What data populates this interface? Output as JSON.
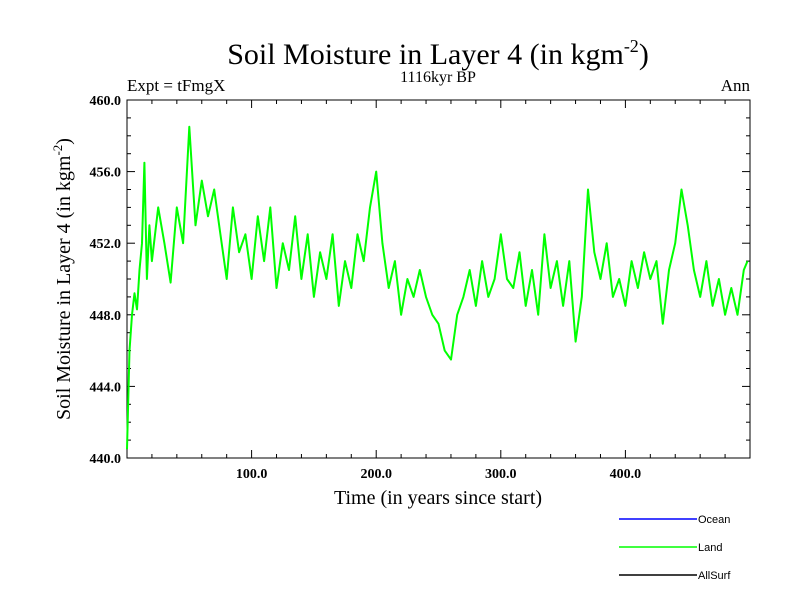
{
  "chart_data": {
    "type": "line",
    "title": "Soil Moisture in Layer 4 (in kgm",
    "title_sup": "-2",
    "title_close": ")",
    "subtitle": "1116kyr BP",
    "left_label": "Expt = tFmgX",
    "right_label": "Ann",
    "xlabel": "Time (in years since start)",
    "ylabel": "Soil Moisture in Layer 4 (in kgm",
    "ylabel_sup": "-2",
    "ylabel_close": ")",
    "xlim": [
      0,
      500
    ],
    "ylim": [
      440,
      460
    ],
    "yticks": [
      440,
      444,
      448,
      452,
      456,
      460
    ],
    "ytick_labels": [
      "440.0",
      "444.0",
      "448.0",
      "452.0",
      "456.0",
      "460.0"
    ],
    "xticks": [
      100,
      200,
      300,
      400
    ],
    "xtick_labels": [
      "100.0",
      "200.0",
      "300.0",
      "400.0"
    ],
    "legend": [
      {
        "name": "Ocean",
        "color": "#0000ff"
      },
      {
        "name": "Land",
        "color": "#00ff00"
      },
      {
        "name": "AllSurf",
        "color": "#000000"
      }
    ],
    "series": [
      {
        "name": "Land",
        "color": "#00ff00",
        "x": [
          0,
          2,
          4,
          6,
          8,
          10,
          12,
          14,
          16,
          18,
          20,
          25,
          30,
          35,
          40,
          45,
          50,
          55,
          60,
          65,
          70,
          75,
          80,
          85,
          90,
          95,
          100,
          105,
          110,
          115,
          120,
          125,
          130,
          135,
          140,
          145,
          150,
          155,
          160,
          165,
          170,
          175,
          180,
          185,
          190,
          195,
          200,
          205,
          210,
          215,
          220,
          225,
          230,
          235,
          240,
          245,
          250,
          255,
          260,
          265,
          270,
          275,
          280,
          285,
          290,
          295,
          300,
          305,
          310,
          315,
          320,
          325,
          330,
          335,
          340,
          345,
          350,
          355,
          360,
          365,
          370,
          375,
          380,
          385,
          390,
          395,
          400,
          405,
          410,
          415,
          420,
          425,
          430,
          435,
          440,
          445,
          450,
          455,
          460,
          465,
          470,
          475,
          480,
          485,
          490,
          495,
          498
        ],
        "values": [
          440.5,
          446,
          448,
          449.2,
          448.3,
          450.5,
          452,
          456.5,
          450,
          453,
          451,
          454,
          452,
          449.8,
          454,
          452,
          458.5,
          453,
          455.5,
          453.5,
          455,
          452.5,
          450,
          454,
          451.5,
          452.5,
          450,
          453.5,
          451,
          454,
          449.5,
          452,
          450.5,
          453.5,
          450,
          452.5,
          449,
          451.5,
          450,
          452.5,
          448.5,
          451,
          449.5,
          452.5,
          451,
          454,
          456,
          452,
          449.5,
          451,
          448,
          450,
          449,
          450.5,
          449,
          448,
          447.5,
          446,
          445.5,
          448,
          449,
          450.5,
          448.5,
          451,
          449,
          450,
          452.5,
          450,
          449.5,
          451.5,
          448.5,
          450.5,
          448,
          452.5,
          449.5,
          451,
          448.5,
          451,
          446.5,
          449,
          455,
          451.5,
          450,
          452,
          449,
          450,
          448.5,
          451,
          449.5,
          451.5,
          450,
          451,
          447.5,
          450.5,
          452,
          455,
          453,
          450.5,
          449,
          451,
          448.5,
          450,
          448,
          449.5,
          448,
          450.5,
          451
        ]
      }
    ]
  }
}
